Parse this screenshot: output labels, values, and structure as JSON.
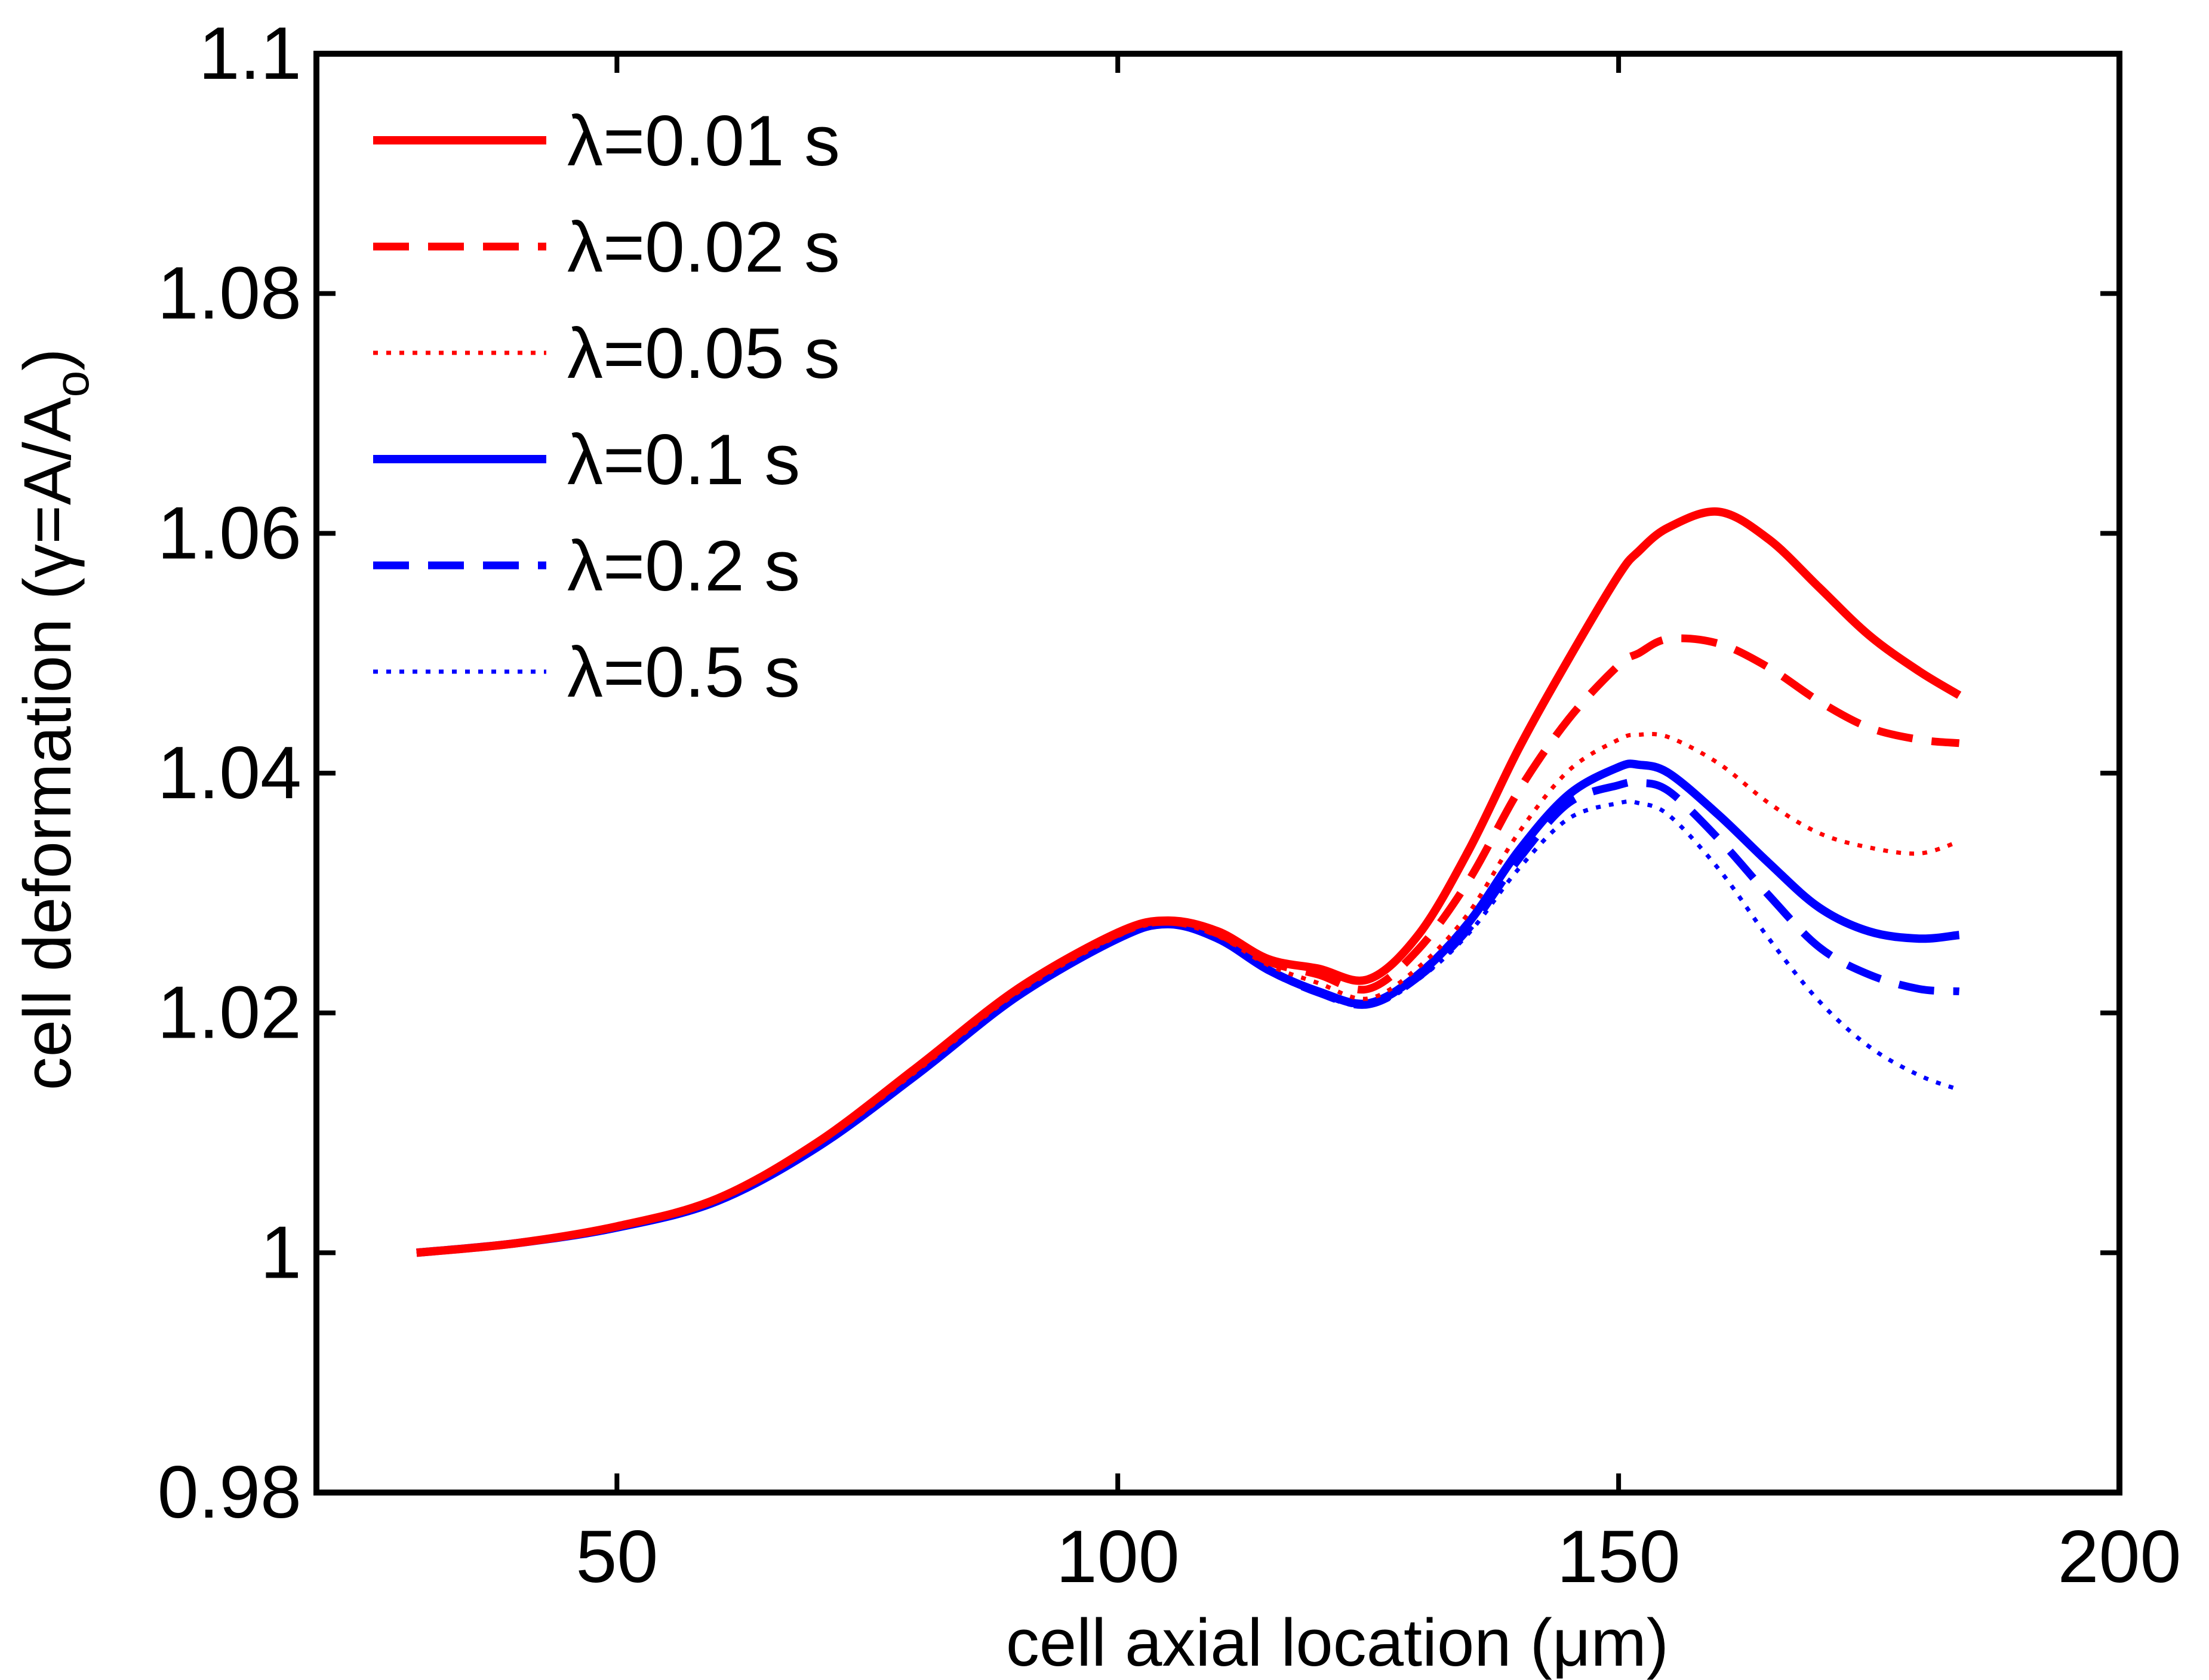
{
  "chart_data": {
    "type": "line",
    "title": "",
    "xlabel": "cell axial location (μm)",
    "ylabel_main": "cell deformation (γ=A/A",
    "ylabel_sub": "o",
    "ylabel_close": ")",
    "xlim": [
      20,
      200
    ],
    "ylim": [
      0.98,
      1.1
    ],
    "xticks": [
      50,
      100,
      150,
      200
    ],
    "xtick_labels": [
      "50",
      "100",
      "150",
      "200"
    ],
    "yticks": [
      0.98,
      1,
      1.02,
      1.04,
      1.06,
      1.08,
      1.1
    ],
    "ytick_labels": [
      "0.98",
      "1",
      "1.02",
      "1.04",
      "1.06",
      "1.08",
      "1.1"
    ],
    "grid": false,
    "legend_position": "top-left",
    "x": [
      30,
      40,
      50,
      60,
      70,
      80,
      90,
      100,
      105,
      110,
      115,
      120,
      125,
      130,
      135,
      140,
      145,
      150,
      152,
      155,
      160,
      165,
      170,
      175,
      180,
      184
    ],
    "series": [
      {
        "name": "λ=0.01 s",
        "color": "#ff0000",
        "style": "solid",
        "values": [
          1.0,
          1.0008,
          1.0022,
          1.0045,
          1.0092,
          1.0155,
          1.022,
          1.0267,
          1.0277,
          1.0268,
          1.0245,
          1.0237,
          1.0228,
          1.0265,
          1.0335,
          1.042,
          1.0495,
          1.0565,
          1.0585,
          1.0605,
          1.0618,
          1.0595,
          1.0555,
          1.0515,
          1.0485,
          1.0465
        ]
      },
      {
        "name": "λ=0.02 s",
        "color": "#ff0000",
        "style": "dashed",
        "values": [
          1.0,
          1.0008,
          1.0022,
          1.0045,
          1.0092,
          1.0155,
          1.022,
          1.0266,
          1.0276,
          1.0266,
          1.0243,
          1.0232,
          1.022,
          1.0253,
          1.031,
          1.0385,
          1.0445,
          1.049,
          1.05,
          1.0512,
          1.0508,
          1.0488,
          1.046,
          1.0438,
          1.0428,
          1.0425
        ]
      },
      {
        "name": "λ=0.05 s",
        "color": "#ff0000",
        "style": "dotted",
        "values": [
          1.0,
          1.0008,
          1.0021,
          1.0044,
          1.009,
          1.0152,
          1.0217,
          1.0264,
          1.0275,
          1.0264,
          1.024,
          1.0225,
          1.0212,
          1.0238,
          1.0283,
          1.035,
          1.0402,
          1.0428,
          1.0432,
          1.043,
          1.0408,
          1.0375,
          1.035,
          1.0338,
          1.0333,
          1.0343
        ]
      },
      {
        "name": "λ=0.1 s",
        "color": "#0000ff",
        "style": "solid",
        "values": [
          1.0,
          1.0008,
          1.0021,
          1.0043,
          1.0088,
          1.0149,
          1.0214,
          1.0262,
          1.0274,
          1.0262,
          1.0236,
          1.0218,
          1.0208,
          1.0232,
          1.0275,
          1.0335,
          1.0382,
          1.0405,
          1.0407,
          1.04,
          1.0365,
          1.0325,
          1.0288,
          1.0268,
          1.0262,
          1.0265
        ]
      },
      {
        "name": "λ=0.2 s",
        "color": "#0000ff",
        "style": "dashed",
        "values": [
          1.0,
          1.0008,
          1.0021,
          1.0043,
          1.0088,
          1.0149,
          1.0214,
          1.0262,
          1.0274,
          1.0262,
          1.0236,
          1.0217,
          1.0207,
          1.023,
          1.027,
          1.0328,
          1.0375,
          1.039,
          1.0392,
          1.0385,
          1.0345,
          1.0298,
          1.0255,
          1.0232,
          1.022,
          1.0218
        ]
      },
      {
        "name": "λ=0.5 s",
        "color": "#0000ff",
        "style": "dotted",
        "values": [
          1.0,
          1.0008,
          1.0021,
          1.0043,
          1.0088,
          1.0149,
          1.0214,
          1.0262,
          1.0274,
          1.0262,
          1.0236,
          1.0216,
          1.0206,
          1.0228,
          1.0266,
          1.032,
          1.0362,
          1.0375,
          1.0375,
          1.0365,
          1.032,
          1.0262,
          1.021,
          1.0172,
          1.0148,
          1.0136
        ]
      }
    ]
  }
}
